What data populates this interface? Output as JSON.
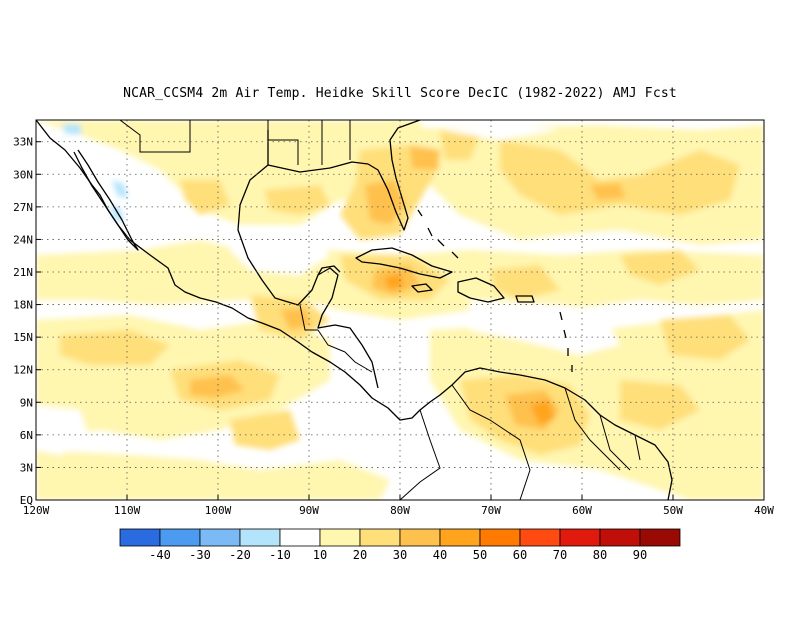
{
  "title": "NCAR_CCSM4  2m Air Temp. Heidke Skill Score DecIC (1982-2022) AMJ Fcst",
  "map": {
    "lon_range": [
      -120,
      -40
    ],
    "lat_range": [
      0,
      35
    ],
    "lat_ticks": [
      {
        "value": 33,
        "label": "33N"
      },
      {
        "value": 30,
        "label": "30N"
      },
      {
        "value": 27,
        "label": "27N"
      },
      {
        "value": 24,
        "label": "24N"
      },
      {
        "value": 21,
        "label": "21N"
      },
      {
        "value": 18,
        "label": "18N"
      },
      {
        "value": 15,
        "label": "15N"
      },
      {
        "value": 12,
        "label": "12N"
      },
      {
        "value": 9,
        "label": "9N"
      },
      {
        "value": 6,
        "label": "6N"
      },
      {
        "value": 3,
        "label": "3N"
      },
      {
        "value": 0,
        "label": "EQ"
      }
    ],
    "lon_ticks": [
      {
        "value": -120,
        "label": "120W"
      },
      {
        "value": -110,
        "label": "110W"
      },
      {
        "value": -100,
        "label": "100W"
      },
      {
        "value": -90,
        "label": "90W"
      },
      {
        "value": -80,
        "label": "80W"
      },
      {
        "value": -70,
        "label": "70W"
      },
      {
        "value": -60,
        "label": "60W"
      },
      {
        "value": -50,
        "label": "50W"
      },
      {
        "value": -40,
        "label": "40W"
      }
    ],
    "grid": true
  },
  "colorbar": {
    "colors": [
      "#2a6be0",
      "#4c9bf0",
      "#7cbaf5",
      "#b4e4fb",
      "#ffffff",
      "#fff6b0",
      "#ffdf7a",
      "#ffc14d",
      "#ffa41c",
      "#ff7a00",
      "#ff4a12",
      "#e01a0c",
      "#c00f08",
      "#9a0a04"
    ],
    "labels": [
      "-40",
      "-30",
      "-20",
      "-10",
      "10",
      "20",
      "30",
      "40",
      "50",
      "60",
      "70",
      "80",
      "90"
    ]
  },
  "field_colors": {
    "10-20": "#fff6b0",
    "20-30": "#ffdf7a",
    "30-40": "#ffc14d",
    "40-50": "#ffa41c",
    "-10-0": "#b4e4fb"
  }
}
